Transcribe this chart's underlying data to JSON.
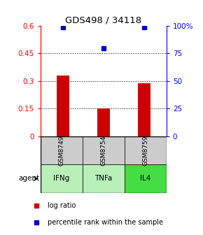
{
  "title": "GDS498 / 34118",
  "samples": [
    "GSM8749",
    "GSM8754",
    "GSM8759"
  ],
  "agents": [
    "IFNg",
    "TNFa",
    "IL4"
  ],
  "log_ratios": [
    0.33,
    0.15,
    0.29
  ],
  "percentile_ranks": [
    99,
    80,
    99
  ],
  "ylim_left": [
    0,
    0.6
  ],
  "ylim_right": [
    0,
    100
  ],
  "yticks_left": [
    0,
    0.15,
    0.3,
    0.45,
    0.6
  ],
  "yticks_right": [
    0,
    25,
    50,
    75,
    100
  ],
  "ytick_labels_right": [
    "0",
    "25",
    "50",
    "75",
    "100%"
  ],
  "bar_color": "#cc0000",
  "dot_color": "#0000cc",
  "cell_gray": "#cccccc",
  "agent_colors": [
    "#b8f0b8",
    "#b8f0b8",
    "#44dd44"
  ],
  "bar_width": 0.3,
  "x_positions": [
    1,
    2,
    3
  ],
  "xlim": [
    0.45,
    3.55
  ],
  "dotted_lines": [
    0.15,
    0.3,
    0.45
  ],
  "grid_dotted_color": "black",
  "left_spine_color": "red",
  "right_spine_color": "blue"
}
